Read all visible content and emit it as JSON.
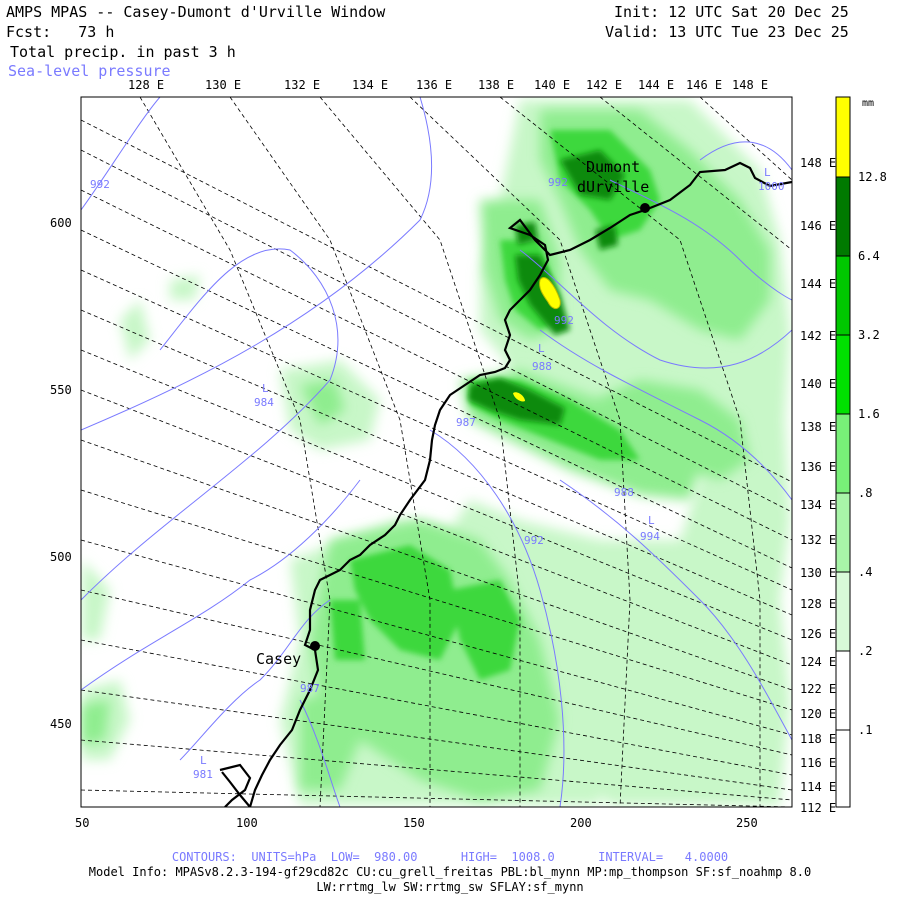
{
  "header": {
    "title": "AMPS MPAS -- Casey-Dumont d'Urville Window",
    "forecast": "Fcst:   73 h",
    "field": "Total precip. in past 3 h",
    "overlay": "Sea-level pressure",
    "init": "Init: 12 UTC Sat 20 Dec 25",
    "valid": "Valid: 13 UTC Tue 23 Dec 25"
  },
  "map": {
    "top_lon_labels": [
      "128 E",
      "130 E",
      "132 E",
      "134 E",
      "136 E",
      "138 E",
      "140 E",
      "142 E",
      "144 E",
      "146 E",
      "148 E"
    ],
    "right_lat_labels": [
      "148 E",
      "146 E",
      "144 E",
      "142 E",
      "140 E",
      "138 E",
      "136 E",
      "134 E",
      "132 E",
      "130 E",
      "128 E",
      "126 E",
      "124 E",
      "122 E",
      "120 E",
      "118 E",
      "116 E",
      "114 E",
      "112 E"
    ],
    "x_grid_labels": [
      "50",
      "100",
      "150",
      "200",
      "250"
    ],
    "y_grid_labels": [
      "600",
      "550",
      "500",
      "450"
    ],
    "stations": [
      {
        "name": "Dumont\ndUrville",
        "line1": "Dumont",
        "line2": "dUrville"
      },
      {
        "name": "Casey",
        "line1": "Casey"
      }
    ],
    "pressure_labels": [
      {
        "text": "992"
      },
      {
        "text": "992"
      },
      {
        "text": "L"
      },
      {
        "text": "1000"
      },
      {
        "text": "992"
      },
      {
        "text": "L"
      },
      {
        "text": "988"
      },
      {
        "text": "L"
      },
      {
        "text": "984"
      },
      {
        "text": "987"
      },
      {
        "text": "988"
      },
      {
        "text": "992"
      },
      {
        "text": "L"
      },
      {
        "text": "994"
      },
      {
        "text": "987"
      },
      {
        "text": "L"
      },
      {
        "text": "981"
      }
    ],
    "colors": {
      "coast": "#000000",
      "isobar": "#7a7aff",
      "grid": "#000000"
    }
  },
  "colorbar": {
    "unit": "mm",
    "levels": [
      "12.8",
      "6.4",
      "3.2",
      "1.6",
      ".8",
      ".4",
      ".2",
      ".1"
    ],
    "colors": [
      "#ffff00",
      "#007a00",
      "#00c800",
      "#00e100",
      "#78f078",
      "#a8f5a8",
      "#d8fad8",
      "#ffffff"
    ]
  },
  "footer": {
    "contours": "CONTOURS:  UNITS=hPa  LOW=  980.00      HIGH=  1008.0      INTERVAL=   4.0000",
    "model_info": "Model Info: MPASv8.2.3-194-gf29cd82c CU:cu_grell_freitas PBL:bl_mynn MP:mp_thompson SF:sf_noahmp 8.0",
    "model_info2": "LW:rrtmg_lw SW:rrtmg_sw SFLAY:sf_mynn"
  }
}
